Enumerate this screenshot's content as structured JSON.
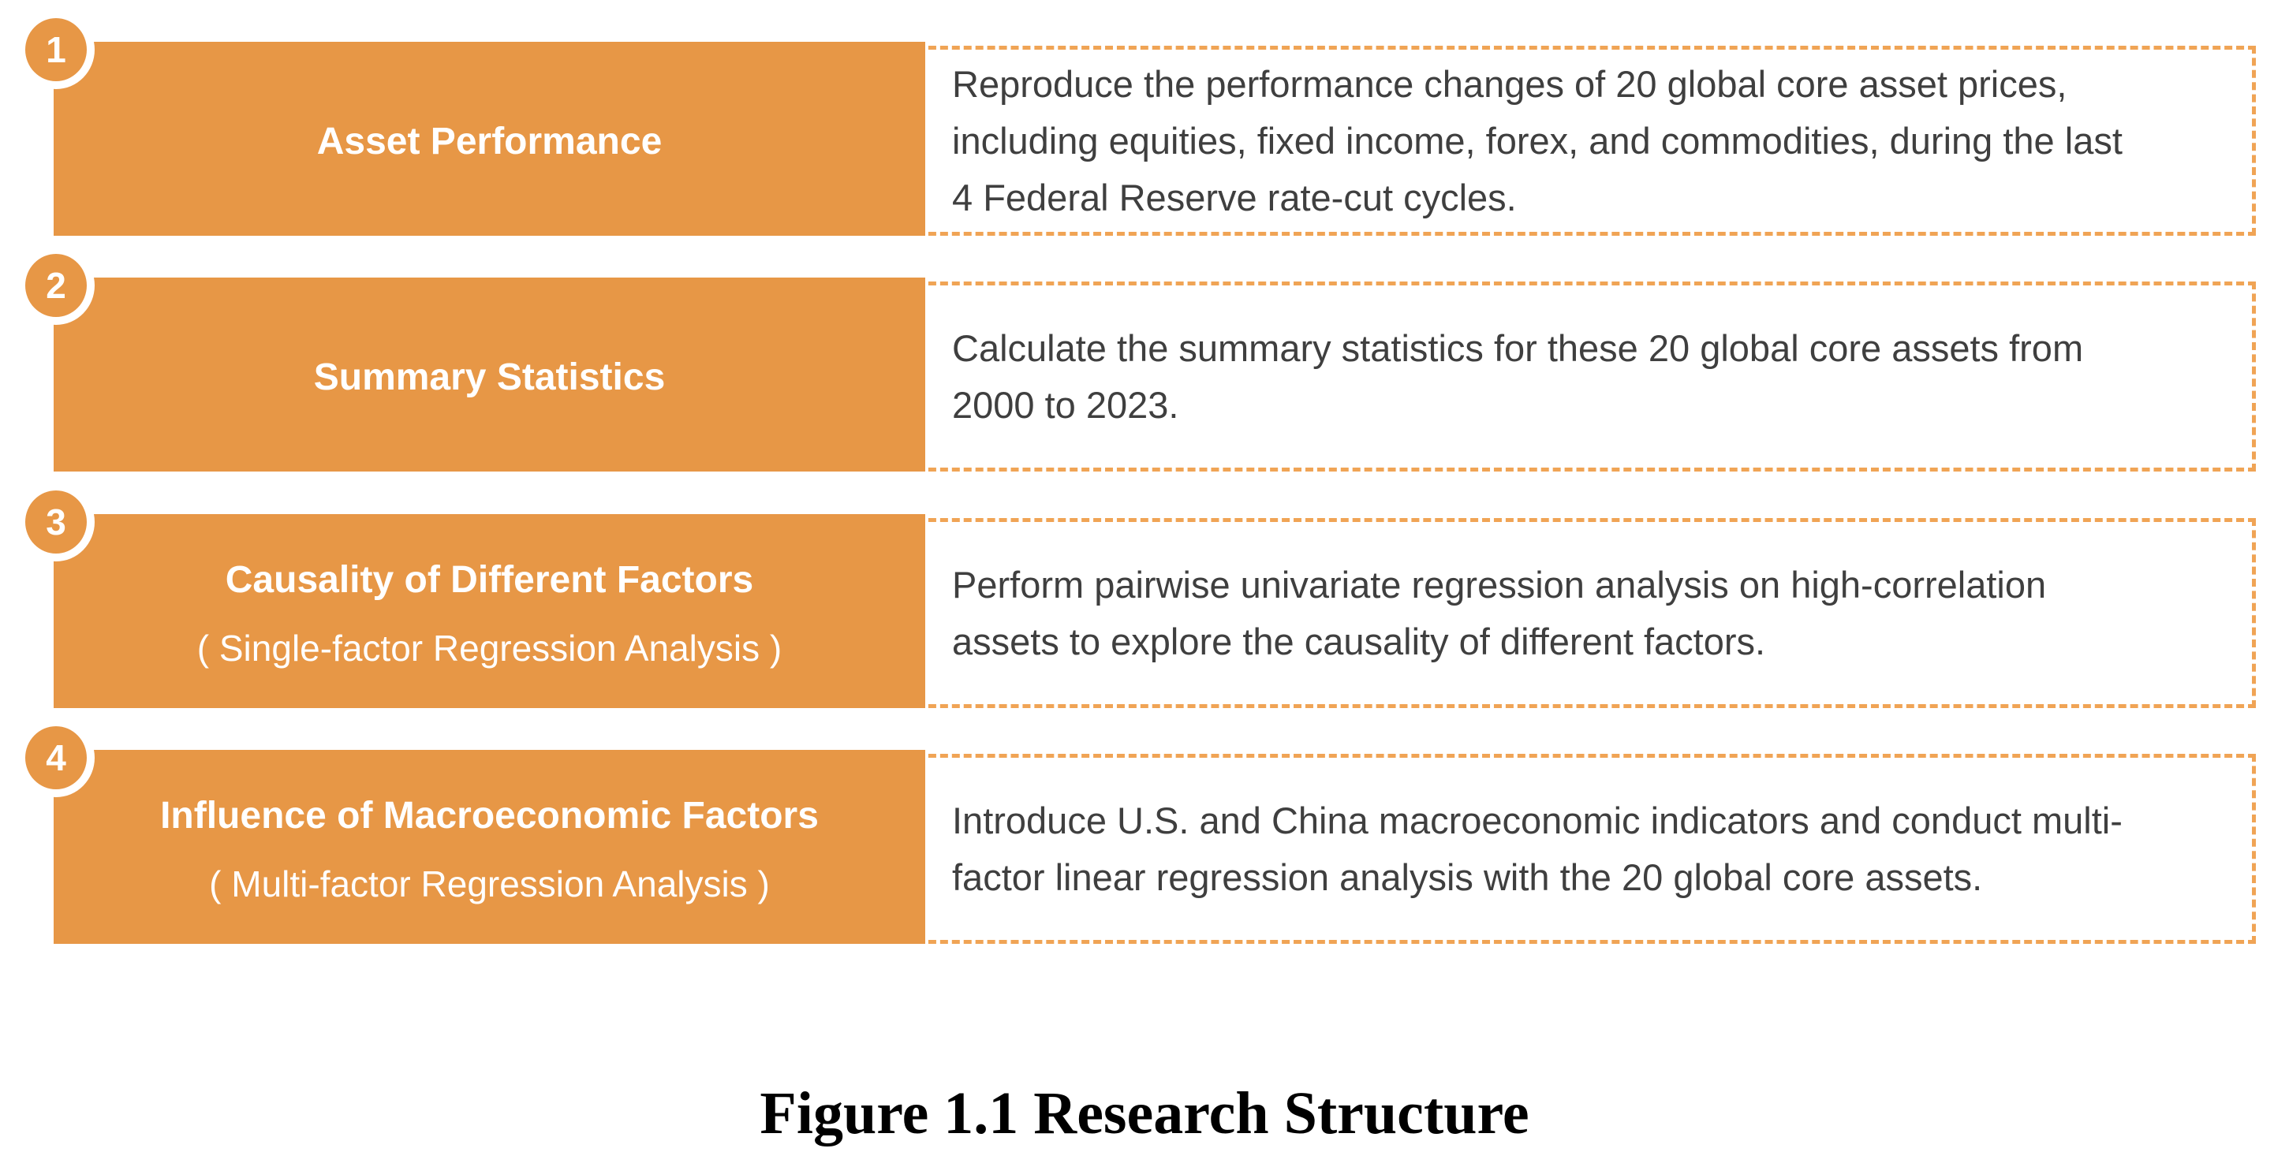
{
  "figure": {
    "caption": "Figure 1.1 Research Structure"
  },
  "colors": {
    "accent_orange": "#E79746",
    "dash_orange": "#F0A455",
    "desc_text": "#3F3F3F",
    "title_text": "#FFFFFF",
    "caption_text": "#000000"
  },
  "steps": [
    {
      "number": "1",
      "title": "Asset Performance",
      "subtitle": "",
      "description": "Reproduce the performance changes of 20 global core asset prices,\nincluding equities, fixed income, forex, and commodities, during the last\n4 Federal Reserve rate-cut cycles."
    },
    {
      "number": "2",
      "title": "Summary Statistics",
      "subtitle": "",
      "description": "Calculate the summary statistics for these 20 global core assets from\n2000 to 2023."
    },
    {
      "number": "3",
      "title": "Causality of Different Factors",
      "subtitle": "( Single-factor Regression Analysis )",
      "description": "Perform pairwise univariate regression analysis on high-correlation\nassets to explore the causality of different factors."
    },
    {
      "number": "4",
      "title": "Influence of Macroeconomic Factors",
      "subtitle": "( Multi-factor Regression Analysis )",
      "description": "Introduce U.S. and China macroeconomic indicators and conduct multi-\nfactor linear regression analysis with the 20 global core assets."
    }
  ]
}
